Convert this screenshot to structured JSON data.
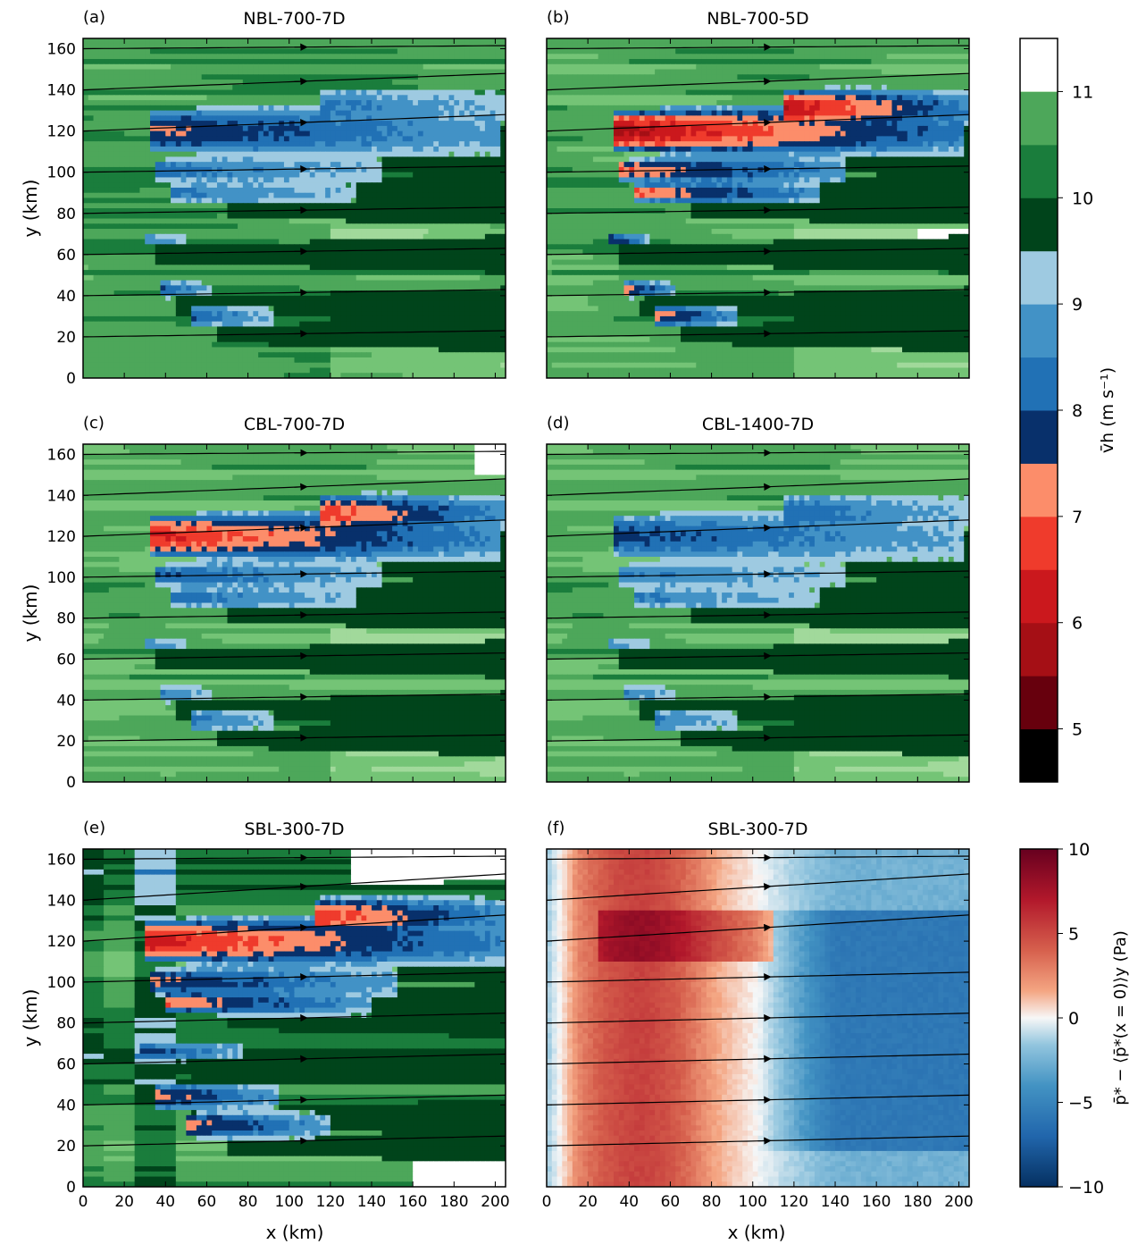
{
  "chart_data": {
    "type": "heatmap",
    "xlabel": "x (km)",
    "ylabel": "y (km)",
    "xlim": [
      0,
      205
    ],
    "ylim": [
      0,
      165
    ],
    "x_ticks": [
      0,
      20,
      40,
      60,
      80,
      100,
      120,
      140,
      160,
      180,
      200
    ],
    "y_ticks": [
      0,
      20,
      40,
      60,
      80,
      100,
      120,
      140,
      160
    ],
    "streamline_y": [
      20,
      40,
      60,
      80,
      100,
      120,
      140,
      160
    ],
    "panels": [
      {
        "label": "(a)",
        "title": "NBL-700-7D",
        "field": "vh",
        "variant": "nbl7",
        "wakes": [
          {
            "x0": 33,
            "y": 120,
            "len": 170,
            "w": 10,
            "min": 7.4
          },
          {
            "x0": 115,
            "y": 131,
            "len": 90,
            "w": 9,
            "min": 8.3
          },
          {
            "x0": 36,
            "y": 101,
            "len": 110,
            "w": 5,
            "min": 8.2
          },
          {
            "x0": 43,
            "y": 90,
            "len": 90,
            "w": 4,
            "min": 8.3
          },
          {
            "x0": 30,
            "y": 67,
            "len": 20,
            "w": 3,
            "min": 8.4
          },
          {
            "x0": 37,
            "y": 43,
            "len": 25,
            "w": 4,
            "min": 7.9
          },
          {
            "x0": 52,
            "y": 30,
            "len": 40,
            "w": 5,
            "min": 8.0
          }
        ]
      },
      {
        "label": "(b)",
        "title": "NBL-700-5D",
        "field": "vh",
        "variant": "nbl5",
        "wakes": [
          {
            "x0": 33,
            "y": 120,
            "len": 170,
            "w": 10,
            "min": 5.8
          },
          {
            "x0": 115,
            "y": 131,
            "len": 90,
            "w": 9,
            "min": 6.0
          },
          {
            "x0": 36,
            "y": 101,
            "len": 110,
            "w": 5,
            "min": 7.0
          },
          {
            "x0": 43,
            "y": 90,
            "len": 90,
            "w": 4,
            "min": 6.8
          },
          {
            "x0": 30,
            "y": 67,
            "len": 20,
            "w": 3,
            "min": 7.3
          },
          {
            "x0": 37,
            "y": 43,
            "len": 25,
            "w": 4,
            "min": 7.0
          },
          {
            "x0": 52,
            "y": 30,
            "len": 40,
            "w": 5,
            "min": 7.0
          }
        ]
      },
      {
        "label": "(c)",
        "title": "CBL-700-7D",
        "field": "vh",
        "variant": "cbl7",
        "wakes": [
          {
            "x0": 33,
            "y": 120,
            "len": 170,
            "w": 10,
            "min": 6.4
          },
          {
            "x0": 115,
            "y": 131,
            "len": 90,
            "w": 9,
            "min": 6.6
          },
          {
            "x0": 36,
            "y": 101,
            "len": 110,
            "w": 5,
            "min": 8.0
          },
          {
            "x0": 43,
            "y": 90,
            "len": 90,
            "w": 4,
            "min": 8.1
          },
          {
            "x0": 30,
            "y": 67,
            "len": 20,
            "w": 3,
            "min": 8.4
          },
          {
            "x0": 37,
            "y": 43,
            "len": 25,
            "w": 4,
            "min": 8.3
          },
          {
            "x0": 52,
            "y": 30,
            "len": 40,
            "w": 5,
            "min": 8.2
          }
        ]
      },
      {
        "label": "(d)",
        "title": "CBL-1400-7D",
        "field": "vh",
        "variant": "cbl14",
        "wakes": [
          {
            "x0": 33,
            "y": 120,
            "len": 170,
            "w": 10,
            "min": 7.8
          },
          {
            "x0": 115,
            "y": 131,
            "len": 90,
            "w": 9,
            "min": 8.1
          },
          {
            "x0": 36,
            "y": 101,
            "len": 110,
            "w": 5,
            "min": 8.4
          },
          {
            "x0": 43,
            "y": 90,
            "len": 90,
            "w": 4,
            "min": 8.4
          },
          {
            "x0": 30,
            "y": 67,
            "len": 20,
            "w": 3,
            "min": 8.6
          },
          {
            "x0": 37,
            "y": 43,
            "len": 25,
            "w": 4,
            "min": 8.4
          },
          {
            "x0": 52,
            "y": 30,
            "len": 40,
            "w": 5,
            "min": 8.4
          }
        ]
      },
      {
        "label": "(e)",
        "title": "SBL-300-7D",
        "field": "vh",
        "variant": "sbl",
        "wakes": [
          {
            "x0": 30,
            "y": 120,
            "len": 175,
            "w": 10,
            "min": 6.2
          },
          {
            "x0": 112,
            "y": 132,
            "len": 95,
            "w": 9,
            "min": 6.5
          },
          {
            "x0": 32,
            "y": 100,
            "len": 120,
            "w": 6,
            "min": 7.4
          },
          {
            "x0": 40,
            "y": 90,
            "len": 100,
            "w": 5,
            "min": 7.0
          },
          {
            "x0": 28,
            "y": 66,
            "len": 50,
            "w": 4,
            "min": 7.6
          },
          {
            "x0": 35,
            "y": 44,
            "len": 60,
            "w": 6,
            "min": 7.2
          },
          {
            "x0": 50,
            "y": 30,
            "len": 70,
            "w": 6,
            "min": 7.2
          }
        ]
      },
      {
        "label": "(f)",
        "title": "SBL-300-7D",
        "field": "p",
        "variant": "pres",
        "wakes": []
      }
    ],
    "colorbars": [
      {
        "label": "v̄h (m s⁻¹)",
        "ticks": [
          5,
          6,
          7,
          8,
          9,
          10,
          11
        ],
        "range": [
          4.5,
          11.5
        ],
        "colors": [
          "#000000",
          "#67000d",
          "#a50f15",
          "#cb181d",
          "#ef3b2c",
          "#fc8d6a",
          "#08306b",
          "#08519c",
          "#2171b5",
          "#4292c6",
          "#9ecae1",
          "#00441b",
          "#1a7d3c",
          "#2f944a",
          "#4da75a",
          "#74c476",
          "#a1d99b",
          "#ffffff"
        ]
      },
      {
        "label": "p̄* − ⟨p̄*(x = 0)⟩y (Pa)",
        "ticks": [
          10,
          5,
          0,
          -5,
          -10
        ],
        "range": [
          -10,
          10
        ]
      }
    ]
  }
}
